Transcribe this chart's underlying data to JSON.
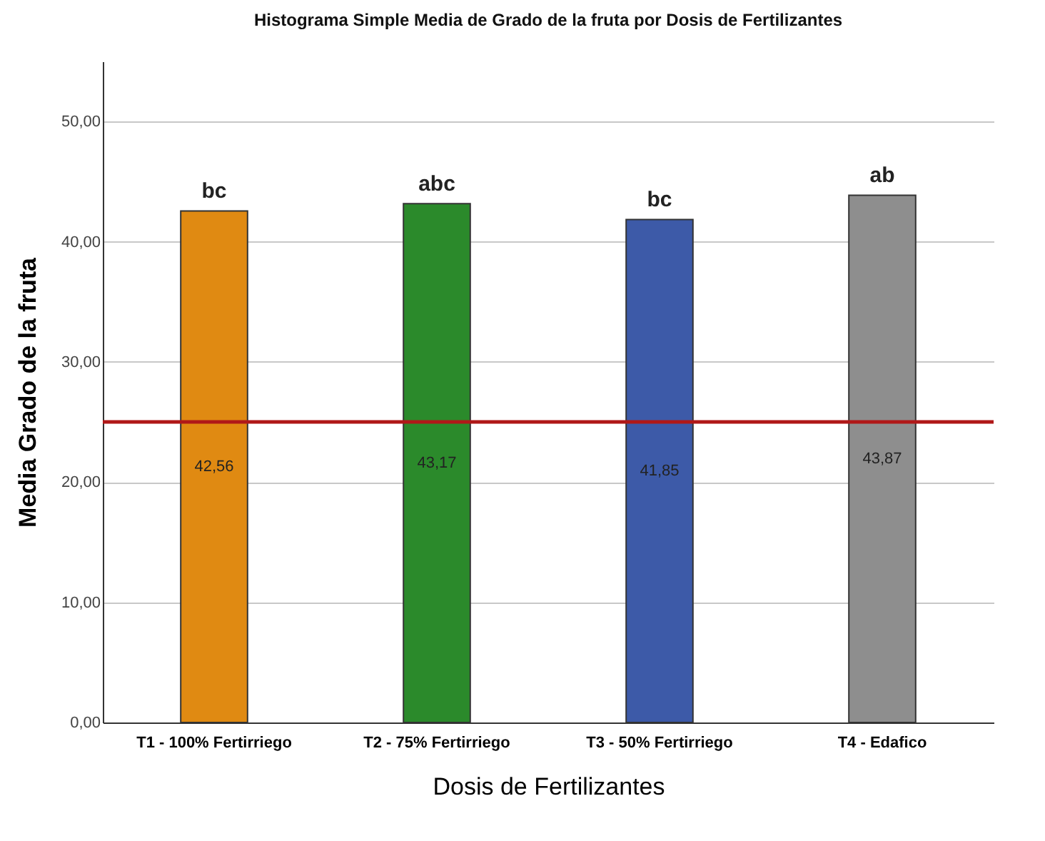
{
  "chart_data": {
    "type": "bar",
    "title": "Histograma Simple Media de Grado de la fruta  por Dosis de Fertilizantes",
    "xlabel": "Dosis de Fertilizantes",
    "ylabel": "Media Grado de la fruta",
    "categories": [
      "T1 - 100% Fertirriego",
      "T2 - 75% Fertirriego",
      "T3 - 50% Fertirriego",
      "T4 - Edafico"
    ],
    "values": [
      42.56,
      43.17,
      41.85,
      43.87
    ],
    "value_labels": [
      "42,56",
      "43,17",
      "41,85",
      "43,87"
    ],
    "colors": [
      "#e08a12",
      "#2b8a2b",
      "#3d5aa8",
      "#8e8e8e"
    ],
    "ylim": [
      0,
      55
    ],
    "yticks": [
      {
        "value": 0,
        "label": "0,00"
      },
      {
        "value": 10,
        "label": "10,00"
      },
      {
        "value": 20,
        "label": "20,00"
      },
      {
        "value": 30,
        "label": "30,00"
      },
      {
        "value": 40,
        "label": "40,00"
      },
      {
        "value": 50,
        "label": "50,00"
      }
    ],
    "grid": "y",
    "ref_lines": [
      {
        "axis": "y",
        "value": 25,
        "color": "#b01818"
      }
    ],
    "annotations": [
      {
        "text": "bc",
        "x": "T1 - 100% Fertirriego",
        "y": 42.56
      },
      {
        "text": "abc",
        "x": "T2 - 75% Fertirriego",
        "y": 43.17
      },
      {
        "text": "bc",
        "x": "T3 - 50% Fertirriego",
        "y": 41.85
      },
      {
        "text": "ab",
        "x": "T4 - Edafico",
        "y": 43.87
      }
    ]
  }
}
